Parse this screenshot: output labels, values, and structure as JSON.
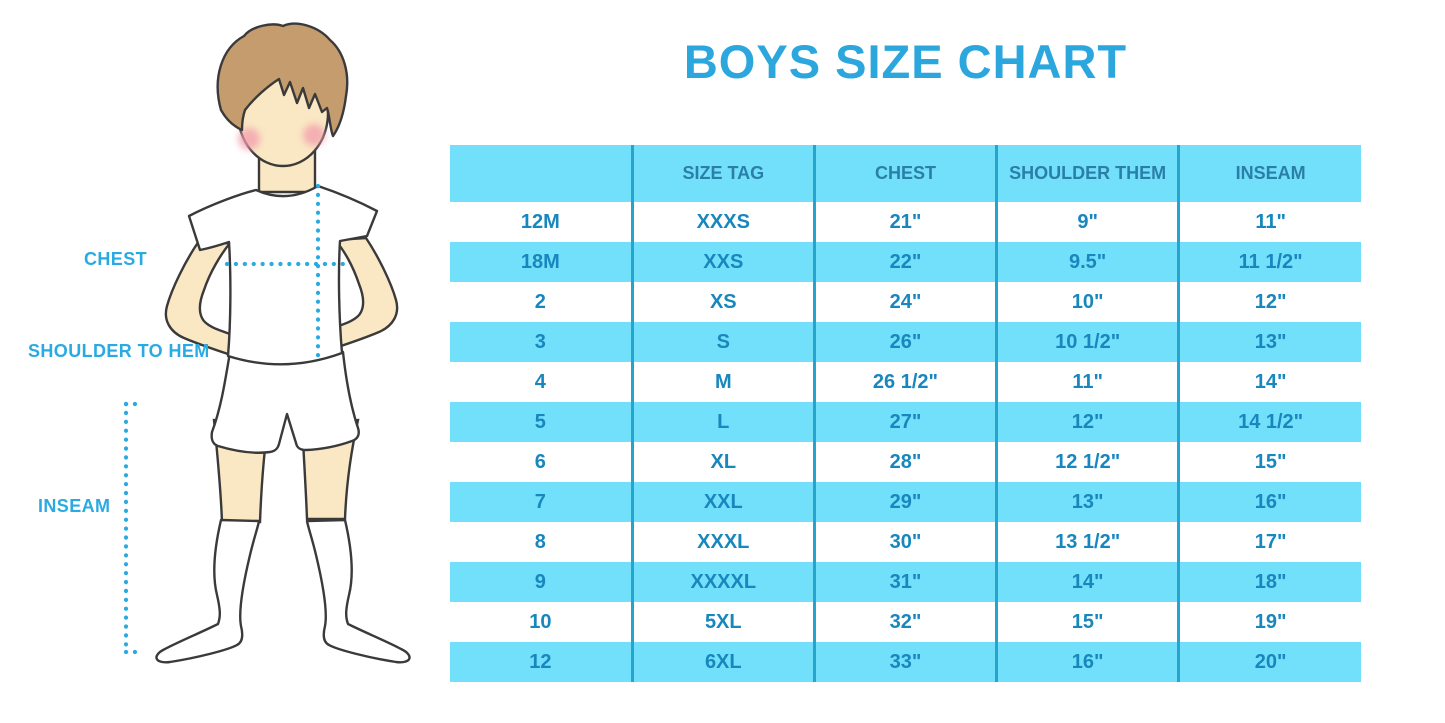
{
  "title": "BOYS SIZE CHART",
  "figure": {
    "labels": {
      "chest": "CHEST",
      "shoulder_to_hem": "SHOULDER TO HEM",
      "inseam": "INSEAM"
    }
  },
  "chart_data": {
    "type": "table",
    "title": "BOYS SIZE CHART",
    "columns": [
      "",
      "SIZE TAG",
      "CHEST",
      "SHOULDER THEM",
      "INSEAM"
    ],
    "rows": [
      [
        "12M",
        "XXXS",
        "21\"",
        "9\"",
        "11\""
      ],
      [
        "18M",
        "XXS",
        "22\"",
        "9.5\"",
        "11 1/2\""
      ],
      [
        "2",
        "XS",
        "24\"",
        "10\"",
        "12\""
      ],
      [
        "3",
        "S",
        "26\"",
        "10 1/2\"",
        "13\""
      ],
      [
        "4",
        "M",
        "26 1/2\"",
        "11\"",
        "14\""
      ],
      [
        "5",
        "L",
        "27\"",
        "12\"",
        "14 1/2\""
      ],
      [
        "6",
        "XL",
        "28\"",
        "12 1/2\"",
        "15\""
      ],
      [
        "7",
        "XXL",
        "29\"",
        "13\"",
        "16\""
      ],
      [
        "8",
        "XXXL",
        "30\"",
        "13 1/2\"",
        "17\""
      ],
      [
        "9",
        "XXXXL",
        "31\"",
        "14\"",
        "18\""
      ],
      [
        "10",
        "5XL",
        "32\"",
        "15\"",
        "19\""
      ],
      [
        "12",
        "6XL",
        "33\"",
        "16\"",
        "20\""
      ]
    ],
    "layout": {
      "row_striping": [
        "white",
        "cyan"
      ],
      "legend": "none",
      "grid": "vertical-dividers-only"
    }
  },
  "colors": {
    "accent_blue": "#29ABE2",
    "title_blue": "#2BA7DE",
    "table_fill_cyan": "#72E0FA",
    "table_divider": "#25A5CE",
    "header_text": "#2A7FA8",
    "cell_text": "#1787BE",
    "skin": "#FAE7C3",
    "hair": "#C59C6D",
    "cheek": "#F29DAD",
    "outline": "#3A3A3A"
  }
}
